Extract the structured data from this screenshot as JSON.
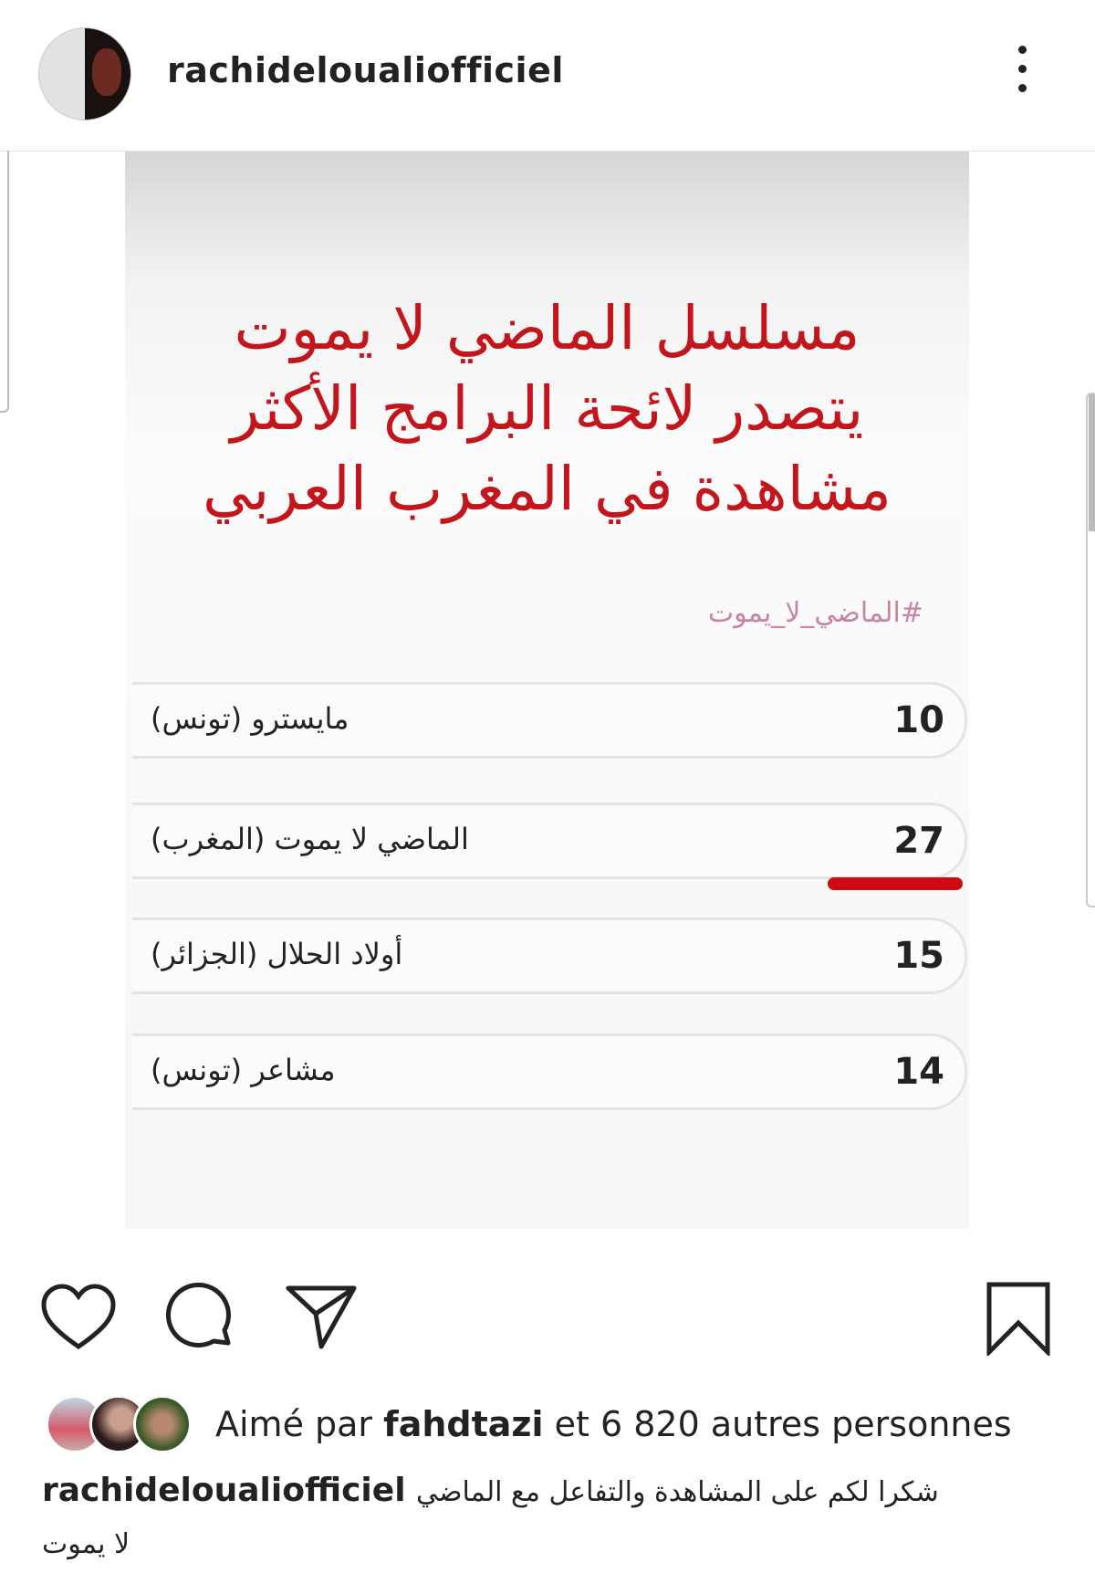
{
  "header": {
    "username": "rachidelouali­officiel",
    "more_icon": "more-vertical-icon"
  },
  "post": {
    "title_lines": [
      "مسلسل الماضي لا يموت",
      "يتصدر لائحة البرامج الأكثر",
      "مشاهدة في المغرب العربي"
    ],
    "hashtag": "#الماضي_لا_يموت",
    "ranking": [
      {
        "rank": "10",
        "title": "مايسترو (تونس)"
      },
      {
        "rank": "27",
        "title": "الماضي لا يموت (المغرب)",
        "highlighted": true
      },
      {
        "rank": "15",
        "title": "أولاد الحلال (الجزائر)"
      },
      {
        "rank": "14",
        "title": "مشاعر (تونس)"
      }
    ],
    "highlight_color": "#d00a12",
    "title_color": "#c2161c"
  },
  "actions": {
    "like": "heart-icon",
    "comment": "comment-icon",
    "share": "send-icon",
    "save": "bookmark-icon"
  },
  "likes": {
    "prefix": "Aimé par",
    "user": "fahdtazi",
    "suffix": "et 6 820 autres personnes"
  },
  "caption": {
    "username": "rachidelouali­officiel",
    "text_line1": "شكرا لكم على المشاهدة والتفاعل مع الماضي",
    "text_line2": "لا يموت"
  }
}
